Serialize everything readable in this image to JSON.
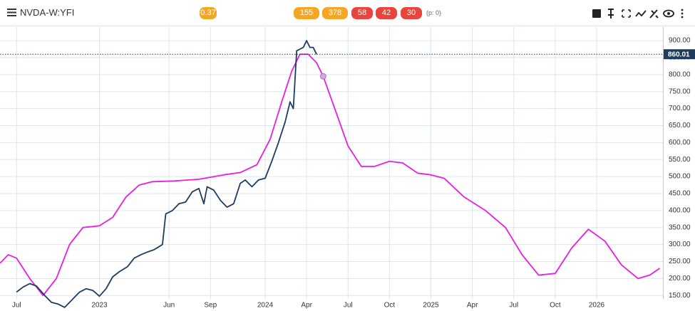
{
  "header": {
    "title": "NVDA-W:YFI",
    "badges": [
      {
        "text": "0.37",
        "color": "#f5a623"
      },
      {
        "text": "155",
        "color": "#f5a623"
      },
      {
        "text": "378",
        "color": "#f5a623"
      },
      {
        "text": "58",
        "color": "#e8453c"
      },
      {
        "text": "42",
        "color": "#e8453c"
      },
      {
        "text": "30",
        "color": "#e8453c"
      }
    ],
    "note": "(p: 0)"
  },
  "chart_data": {
    "type": "line",
    "xlim": [
      2022.4,
      2026.4
    ],
    "xticks": [
      {
        "value": 2022.5,
        "label": "Jul"
      },
      2023,
      {
        "value": 2023.42,
        "label": "Jun"
      },
      {
        "value": 2023.67,
        "label": "Sep"
      },
      2024,
      {
        "value": 2024.25,
        "label": "Apr"
      },
      {
        "value": 2024.5,
        "label": "Jul"
      },
      {
        "value": 2024.75,
        "label": "Oct"
      },
      2025,
      {
        "value": 2025.25,
        "label": "Apr"
      },
      {
        "value": 2025.5,
        "label": "Jul"
      },
      {
        "value": 2025.75,
        "label": "Oct"
      },
      2026
    ],
    "ylim": [
      140,
      940
    ],
    "yticks": [
      {
        "value": 150,
        "label": "150.00"
      },
      {
        "value": 200,
        "label": "200.00"
      },
      {
        "value": 250,
        "label": "250.00"
      },
      {
        "value": 300,
        "label": "300.00"
      },
      {
        "value": 350,
        "label": "350.00"
      },
      {
        "value": 400,
        "label": "400.00"
      },
      {
        "value": 450,
        "label": "450.00"
      },
      {
        "value": 500,
        "label": "500.00"
      },
      {
        "value": 550,
        "label": "550.00"
      },
      {
        "value": 600,
        "label": "600.00"
      },
      {
        "value": 650,
        "label": "650.00"
      },
      {
        "value": 700,
        "label": "700.00"
      },
      {
        "value": 750,
        "label": "750.00"
      },
      {
        "value": 800,
        "label": "800.00"
      },
      {
        "value": 850,
        "label": "850.00"
      },
      {
        "value": 900,
        "label": "900.00"
      }
    ],
    "grid": true,
    "last_price": 860.01,
    "series": [
      {
        "color": "#e81ee0",
        "x": [
          2022.4,
          2022.45,
          2022.5,
          2022.58,
          2022.66,
          2022.74,
          2022.82,
          2022.9,
          2023.0,
          2023.08,
          2023.16,
          2023.24,
          2023.32,
          2023.45,
          2023.6,
          2023.75,
          2023.85,
          2023.95,
          2024.03,
          2024.1,
          2024.16,
          2024.21,
          2024.26,
          2024.31,
          2024.35,
          2024.42,
          2024.5,
          2024.58,
          2024.66,
          2024.75,
          2024.83,
          2024.92,
          2025.0,
          2025.08,
          2025.2,
          2025.33,
          2025.45,
          2025.55,
          2025.65,
          2025.75,
          2025.85,
          2025.95,
          2026.05,
          2026.15,
          2026.25,
          2026.32,
          2026.38
        ],
        "values": [
          245,
          270,
          260,
          200,
          150,
          200,
          300,
          350,
          355,
          380,
          440,
          475,
          485,
          487,
          492,
          505,
          512,
          535,
          610,
          720,
          810,
          860,
          860,
          835,
          795,
          700,
          590,
          530,
          530,
          545,
          540,
          510,
          505,
          495,
          440,
          400,
          350,
          270,
          210,
          215,
          290,
          345,
          310,
          240,
          200,
          210,
          230
        ]
      },
      {
        "color": "#1f3b5e",
        "x": [
          2022.5,
          2022.54,
          2022.58,
          2022.62,
          2022.67,
          2022.71,
          2022.75,
          2022.79,
          2022.83,
          2022.88,
          2022.92,
          2022.96,
          2023.0,
          2023.04,
          2023.08,
          2023.12,
          2023.17,
          2023.21,
          2023.25,
          2023.29,
          2023.33,
          2023.38,
          2023.4,
          2023.44,
          2023.48,
          2023.52,
          2023.56,
          2023.6,
          2023.63,
          2023.65,
          2023.69,
          2023.73,
          2023.77,
          2023.81,
          2023.85,
          2023.88,
          2023.92,
          2023.96,
          2024.0,
          2024.04,
          2024.08,
          2024.12,
          2024.15,
          2024.17,
          2024.19,
          2024.21,
          2024.23,
          2024.25,
          2024.27,
          2024.29,
          2024.31
        ],
        "values": [
          160,
          175,
          185,
          178,
          150,
          130,
          125,
          115,
          135,
          160,
          170,
          165,
          148,
          170,
          205,
          220,
          235,
          260,
          270,
          278,
          285,
          300,
          390,
          400,
          420,
          425,
          455,
          465,
          420,
          470,
          460,
          430,
          410,
          420,
          480,
          490,
          470,
          490,
          495,
          545,
          600,
          660,
          720,
          700,
          870,
          875,
          880,
          900,
          880,
          880,
          860
        ]
      }
    ],
    "marker": {
      "x": 2024.35,
      "y": 795
    }
  }
}
